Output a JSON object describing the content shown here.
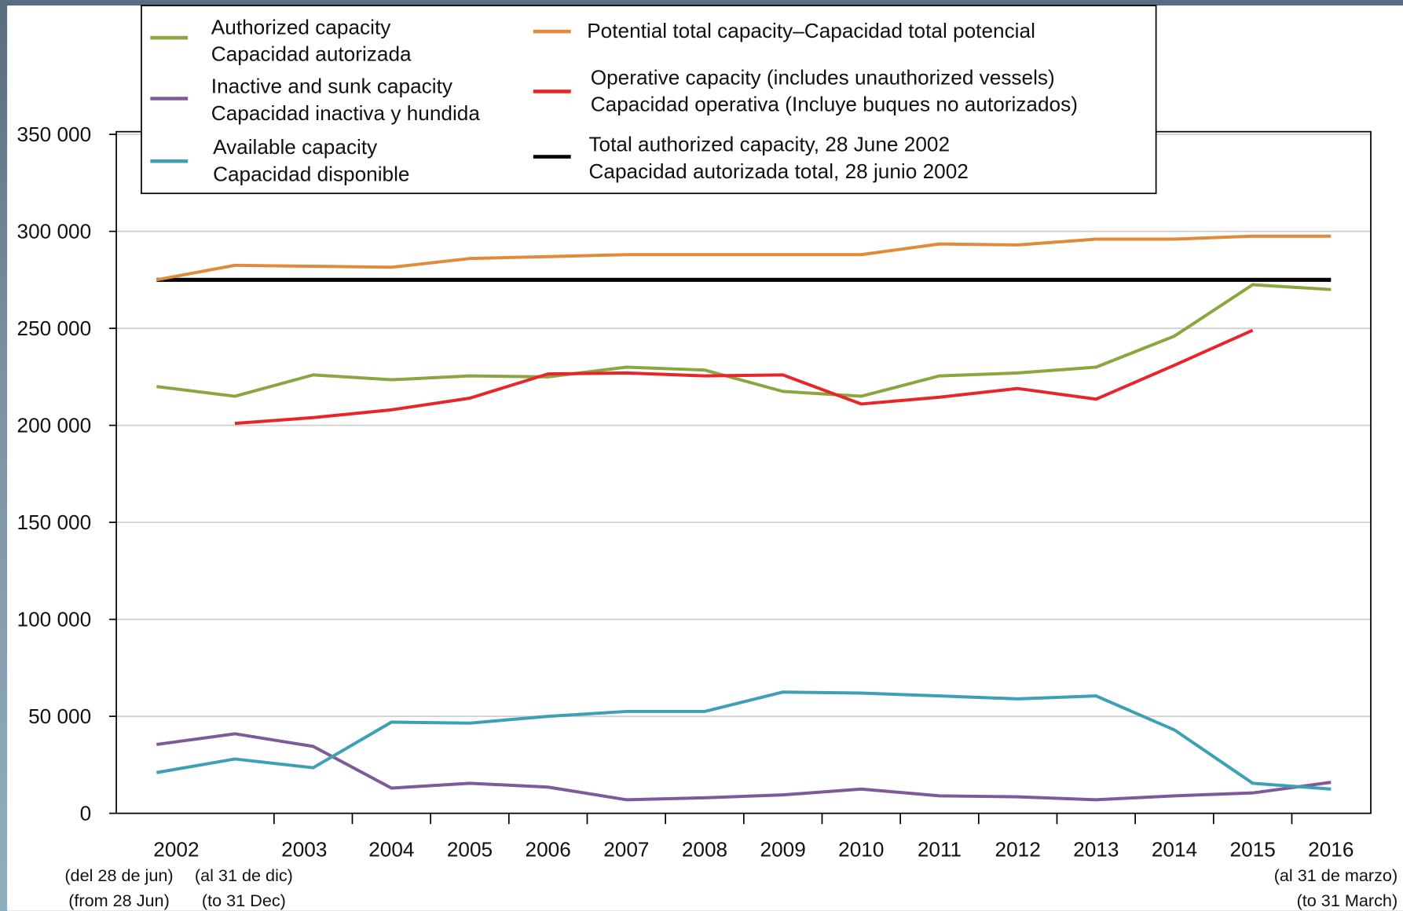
{
  "chart_data": {
    "type": "line",
    "categories": [
      "2002",
      null,
      "2003",
      "2004",
      "2005",
      "2006",
      "2007",
      "2008",
      "2009",
      "2010",
      "2011",
      "2012",
      "2013",
      "2014",
      "2015",
      "2016"
    ],
    "x_sublabels": [
      [
        "(del 28 de jun)",
        "(from 28 Jun)"
      ],
      [
        "(al 31 de dic)",
        "(to 31 Dec)"
      ],
      null,
      null,
      null,
      null,
      null,
      null,
      null,
      null,
      null,
      null,
      null,
      null,
      null,
      [
        "(al 31 de marzo)",
        "(to 31 March)"
      ]
    ],
    "ylim": [
      0,
      350000
    ],
    "yticks": [
      0,
      {
        "value": 50000,
        "label": "50 000"
      },
      {
        "value": 100000,
        "label": "100 000"
      },
      {
        "value": 150000,
        "label": "150 000"
      },
      {
        "value": 200000,
        "label": "200 000"
      },
      {
        "value": 250000,
        "label": "250 000"
      },
      {
        "value": 300000,
        "label": "300 000"
      },
      {
        "value": 350000,
        "label": "350 000"
      }
    ],
    "grid": true,
    "legend": "top",
    "series": [
      {
        "name": "Authorized capacity\nCapacidad autorizada",
        "color": "#8aa640",
        "values": [
          220000,
          215000,
          226000,
          223500,
          225500,
          225000,
          230000,
          228500,
          217500,
          215000,
          225500,
          227000,
          230000,
          246000,
          272500,
          270000
        ]
      },
      {
        "name": "Inactive and sunk capacity\nCapacidad inactiva y hundida",
        "color": "#7e5a9b",
        "values": [
          35500,
          41000,
          34500,
          13000,
          15500,
          13500,
          7000,
          8000,
          9500,
          12500,
          9000,
          8500,
          7000,
          9000,
          10500,
          16000
        ]
      },
      {
        "name": "Available capacity\nCapacidad disponible",
        "color": "#3ea0b5",
        "values": [
          21000,
          28000,
          23500,
          47000,
          46500,
          50000,
          52500,
          52500,
          62500,
          62000,
          60500,
          59000,
          60500,
          43000,
          15500,
          12500
        ]
      },
      {
        "name": "Potential total capacity–Capacidad total potencial",
        "color": "#e08a3c",
        "values": [
          275000,
          282500,
          282000,
          281500,
          286000,
          287000,
          288000,
          288000,
          288000,
          288000,
          293500,
          293000,
          296000,
          296000,
          297500,
          297500
        ]
      },
      {
        "name": "Operative capacity (includes unauthorized vessels)\nCapacidad operativa (Incluye buques no autorizados)",
        "color": "#e8262a",
        "values": [
          null,
          201000,
          204000,
          208000,
          214000,
          226500,
          227000,
          225500,
          226000,
          211000,
          214500,
          219000,
          213500,
          231000,
          249000,
          null
        ]
      },
      {
        "name": "Total authorized capacity, 28 June 2002\nCapacidad autorizada total, 28 junio 2002",
        "color": "#000000",
        "values": [
          275000,
          275000,
          275000,
          275000,
          275000,
          275000,
          275000,
          275000,
          275000,
          275000,
          275000,
          275000,
          275000,
          275000,
          275000,
          275000
        ]
      }
    ]
  }
}
